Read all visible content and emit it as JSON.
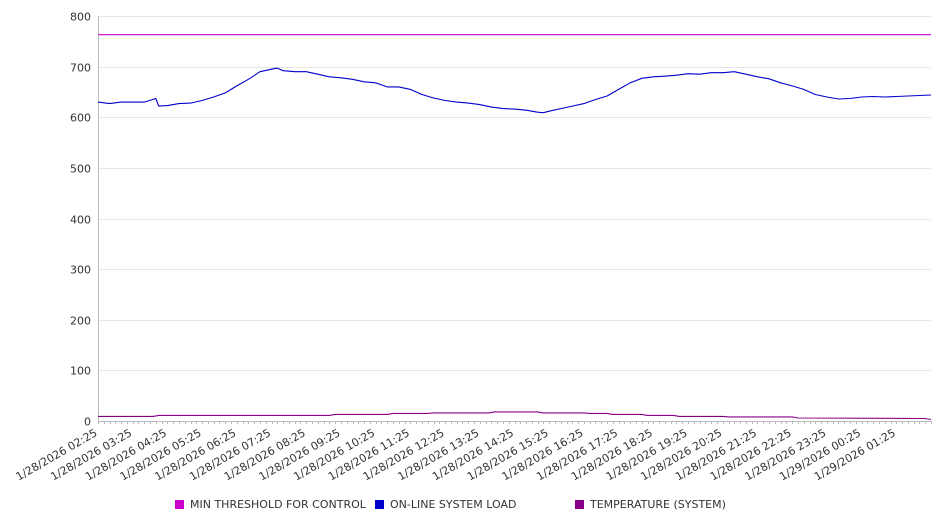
{
  "chart_data": {
    "type": "line",
    "title": "",
    "xlabel": "",
    "ylabel": "",
    "ylim": [
      0,
      800
    ],
    "yticks": [
      "0",
      "100",
      "200",
      "300",
      "400",
      "500",
      "600",
      "700",
      "800"
    ],
    "x_start": "1/28/2026 02:25",
    "x_end": "1/29/2026 02:25",
    "xtick_labels": [
      "1/28/2026 02:25",
      "1/28/2026 03:25",
      "1/28/2026 04:25",
      "1/28/2026 05:25",
      "1/28/2026 06:25",
      "1/28/2026 07:25",
      "1/28/2026 08:25",
      "1/28/2026 09:25",
      "1/28/2026 10:25",
      "1/28/2026 11:25",
      "1/28/2026 12:25",
      "1/28/2026 13:25",
      "1/28/2026 14:25",
      "1/28/2026 15:25",
      "1/28/2026 16:25",
      "1/28/2026 17:25",
      "1/28/2026 18:25",
      "1/28/2026 19:25",
      "1/28/2026 20:25",
      "1/28/2026 21:25",
      "1/28/2026 22:25",
      "1/28/2026 23:25",
      "1/29/2026 00:25",
      "1/29/2026 01:25"
    ],
    "grid": true,
    "legend_position": "bottom",
    "series": [
      {
        "name": "MIN THRESHOLD FOR CONTROL",
        "color": "#cc00cc",
        "points": [
          [
            "1/28/2026 02:25",
            763
          ],
          [
            "1/29/2026 02:25",
            763
          ]
        ]
      },
      {
        "name": "ON-LINE SYSTEM LOAD",
        "color": "#0000cc",
        "points": [
          [
            "1/28/2026 02:25",
            630
          ],
          [
            "1/28/2026 02:45",
            627
          ],
          [
            "1/28/2026 03:05",
            630
          ],
          [
            "1/28/2026 03:25",
            630
          ],
          [
            "1/28/2026 03:45",
            630
          ],
          [
            "1/28/2026 04:05",
            637
          ],
          [
            "1/28/2026 04:10",
            622
          ],
          [
            "1/28/2026 04:25",
            623
          ],
          [
            "1/28/2026 04:45",
            627
          ],
          [
            "1/28/2026 05:05",
            628
          ],
          [
            "1/28/2026 05:25",
            633
          ],
          [
            "1/28/2026 05:45",
            640
          ],
          [
            "1/28/2026 06:05",
            648
          ],
          [
            "1/28/2026 06:25",
            662
          ],
          [
            "1/28/2026 06:45",
            675
          ],
          [
            "1/28/2026 07:05",
            690
          ],
          [
            "1/28/2026 07:25",
            695
          ],
          [
            "1/28/2026 07:35",
            697
          ],
          [
            "1/28/2026 07:45",
            692
          ],
          [
            "1/28/2026 08:05",
            690
          ],
          [
            "1/28/2026 08:25",
            690
          ],
          [
            "1/28/2026 08:45",
            685
          ],
          [
            "1/28/2026 09:05",
            680
          ],
          [
            "1/28/2026 09:25",
            678
          ],
          [
            "1/28/2026 09:45",
            675
          ],
          [
            "1/28/2026 10:05",
            670
          ],
          [
            "1/28/2026 10:25",
            668
          ],
          [
            "1/28/2026 10:45",
            660
          ],
          [
            "1/28/2026 11:05",
            660
          ],
          [
            "1/28/2026 11:25",
            655
          ],
          [
            "1/28/2026 11:45",
            645
          ],
          [
            "1/28/2026 12:05",
            638
          ],
          [
            "1/28/2026 12:25",
            633
          ],
          [
            "1/28/2026 12:45",
            630
          ],
          [
            "1/28/2026 13:05",
            628
          ],
          [
            "1/28/2026 13:25",
            625
          ],
          [
            "1/28/2026 13:45",
            620
          ],
          [
            "1/28/2026 14:05",
            617
          ],
          [
            "1/28/2026 14:25",
            616
          ],
          [
            "1/28/2026 14:45",
            614
          ],
          [
            "1/28/2026 15:05",
            610
          ],
          [
            "1/28/2026 15:15",
            609
          ],
          [
            "1/28/2026 15:25",
            612
          ],
          [
            "1/28/2026 15:45",
            617
          ],
          [
            "1/28/2026 16:05",
            622
          ],
          [
            "1/28/2026 16:25",
            627
          ],
          [
            "1/28/2026 16:45",
            635
          ],
          [
            "1/28/2026 17:05",
            642
          ],
          [
            "1/28/2026 17:25",
            655
          ],
          [
            "1/28/2026 17:45",
            668
          ],
          [
            "1/28/2026 18:05",
            677
          ],
          [
            "1/28/2026 18:25",
            680
          ],
          [
            "1/28/2026 18:45",
            681
          ],
          [
            "1/28/2026 19:05",
            683
          ],
          [
            "1/28/2026 19:25",
            686
          ],
          [
            "1/28/2026 19:45",
            685
          ],
          [
            "1/28/2026 20:05",
            688
          ],
          [
            "1/28/2026 20:25",
            688
          ],
          [
            "1/28/2026 20:45",
            690
          ],
          [
            "1/28/2026 21:05",
            685
          ],
          [
            "1/28/2026 21:25",
            680
          ],
          [
            "1/28/2026 21:45",
            676
          ],
          [
            "1/28/2026 22:05",
            668
          ],
          [
            "1/28/2026 22:25",
            662
          ],
          [
            "1/28/2026 22:45",
            655
          ],
          [
            "1/28/2026 23:05",
            645
          ],
          [
            "1/28/2026 23:25",
            640
          ],
          [
            "1/28/2026 23:45",
            636
          ],
          [
            "1/29/2026 00:05",
            637
          ],
          [
            "1/29/2026 00:25",
            640
          ],
          [
            "1/29/2026 00:45",
            641
          ],
          [
            "1/29/2026 01:05",
            640
          ],
          [
            "1/29/2026 01:25",
            641
          ],
          [
            "1/29/2026 01:45",
            642
          ],
          [
            "1/29/2026 02:05",
            643
          ],
          [
            "1/29/2026 02:25",
            644
          ]
        ]
      },
      {
        "name": "TEMPERATURE (SYSTEM)",
        "color": "#880088",
        "points": [
          [
            "1/28/2026 02:25",
            9
          ],
          [
            "1/28/2026 04:00",
            9
          ],
          [
            "1/28/2026 04:10",
            11
          ],
          [
            "1/28/2026 09:05",
            11
          ],
          [
            "1/28/2026 09:15",
            13
          ],
          [
            "1/28/2026 10:45",
            13
          ],
          [
            "1/28/2026 10:55",
            15
          ],
          [
            "1/28/2026 11:55",
            15
          ],
          [
            "1/28/2026 12:05",
            16
          ],
          [
            "1/28/2026 13:40",
            16
          ],
          [
            "1/28/2026 13:50",
            18
          ],
          [
            "1/28/2026 15:05",
            18
          ],
          [
            "1/28/2026 15:15",
            16
          ],
          [
            "1/28/2026 16:25",
            16
          ],
          [
            "1/28/2026 16:35",
            15
          ],
          [
            "1/28/2026 17:05",
            15
          ],
          [
            "1/28/2026 17:15",
            13
          ],
          [
            "1/28/2026 18:05",
            13
          ],
          [
            "1/28/2026 18:15",
            11
          ],
          [
            "1/28/2026 19:00",
            11
          ],
          [
            "1/28/2026 19:10",
            9
          ],
          [
            "1/28/2026 20:25",
            9
          ],
          [
            "1/28/2026 20:35",
            8
          ],
          [
            "1/28/2026 22:25",
            8
          ],
          [
            "1/28/2026 22:35",
            6
          ],
          [
            "1/29/2026 02:15",
            5
          ],
          [
            "1/29/2026 02:25",
            3
          ]
        ]
      }
    ]
  }
}
